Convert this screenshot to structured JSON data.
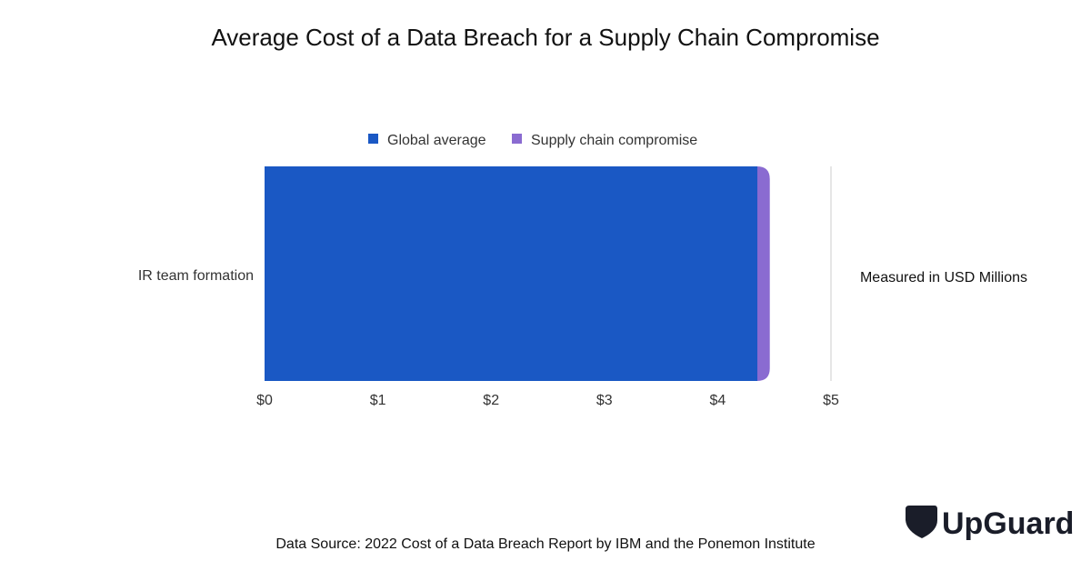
{
  "chart_data": {
    "type": "bar",
    "orientation": "horizontal",
    "title": "Average Cost of a Data Breach for a Supply Chain Compromise",
    "categories": [
      "IR team formation"
    ],
    "series": [
      {
        "name": "Global average",
        "values": [
          4.35
        ],
        "color": "#1a58c4"
      },
      {
        "name": "Supply chain compromise",
        "values": [
          4.46
        ],
        "color": "#8a6bd1"
      }
    ],
    "xlim": [
      0,
      5
    ],
    "x_ticks": [
      0,
      1,
      2,
      3,
      4,
      5
    ],
    "x_tick_labels": [
      "$0",
      "$1",
      "$2",
      "$3",
      "$4",
      "$5"
    ],
    "legend_placement": "top-center",
    "grid": false,
    "note": "Measured in USD Millions"
  },
  "source_text": "Data Source: 2022 Cost of a Data Breach Report by IBM and the Ponemon Institute",
  "brand": {
    "name": "UpGuard",
    "logo_icon": "upguard-shield-icon"
  }
}
